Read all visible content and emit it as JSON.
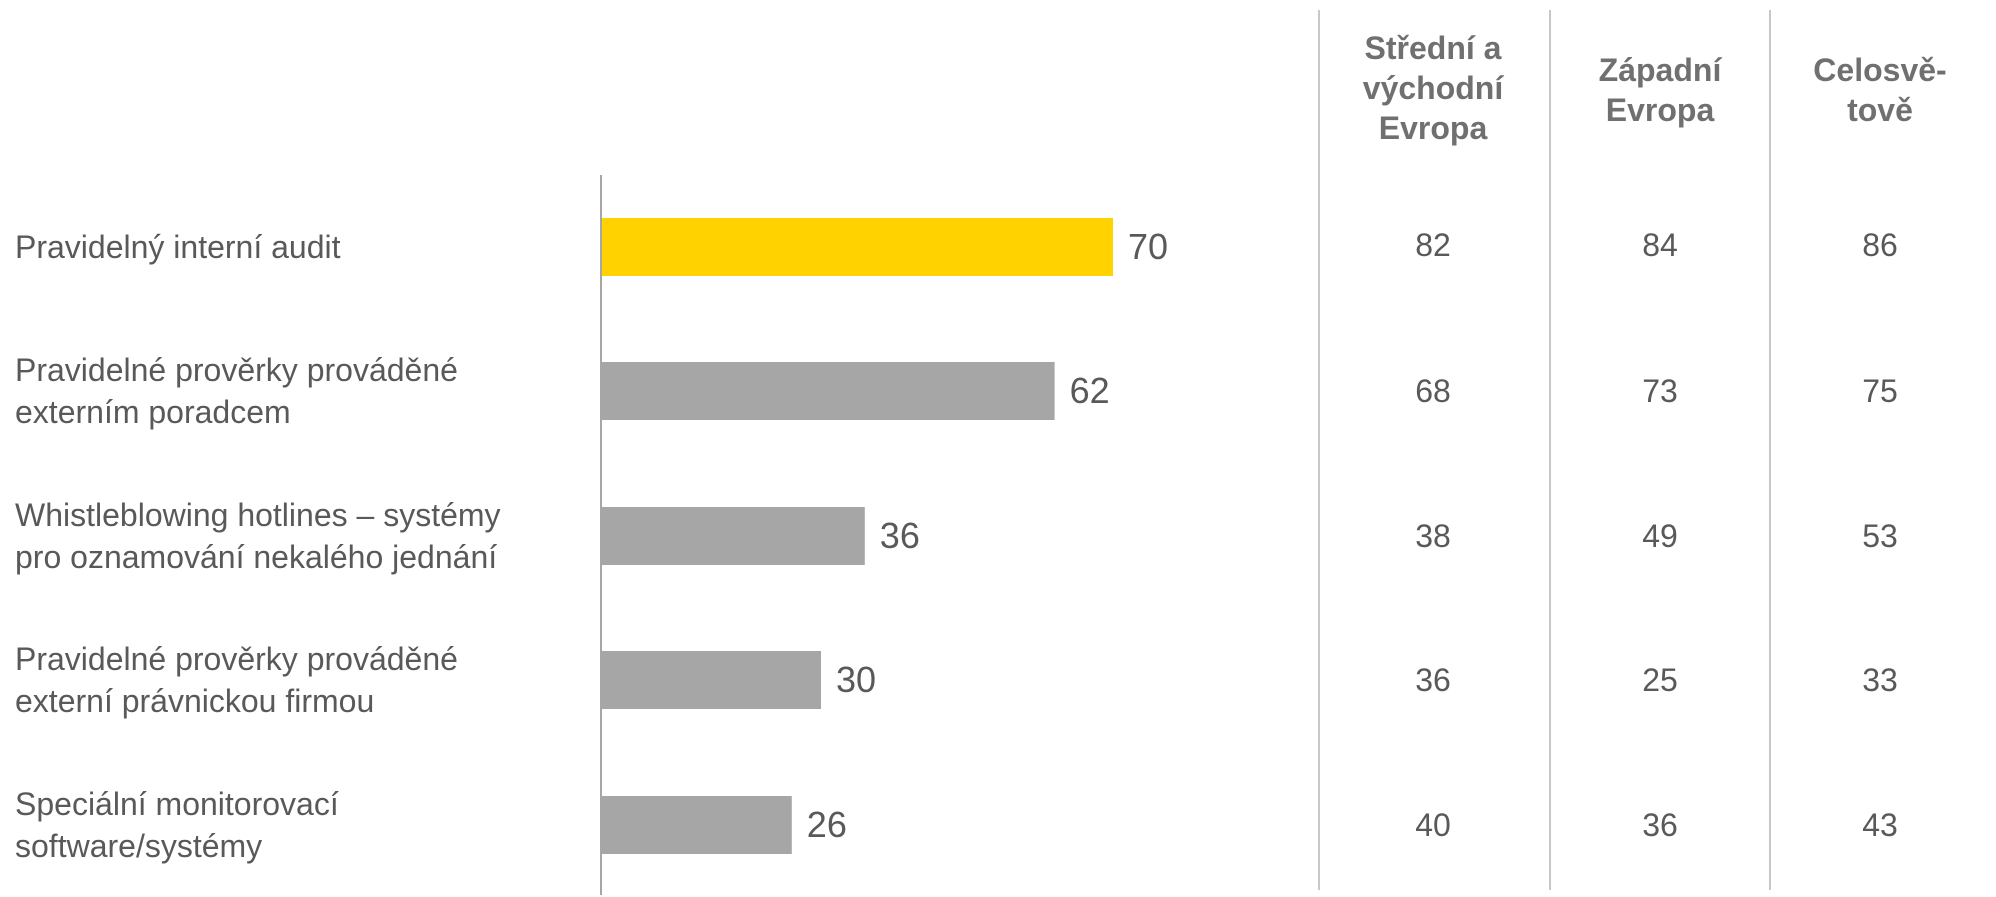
{
  "chart_data": {
    "type": "bar",
    "orientation": "horizontal",
    "categories": [
      "Pravidelný interní audit",
      "Pravidelné prověrky prováděné\nexterním poradcem",
      "Whistleblowing hotlines – systémy\npro oznamování nekalého jednání",
      "Pravidelné prověrky prováděné\nexterní právnickou firmou",
      "Speciální monitorovací\nsoftware/systémy"
    ],
    "values": [
      70,
      62,
      36,
      30,
      26
    ],
    "highlight_index": 0,
    "colors": {
      "highlight": "#FFD200",
      "bar": "#A6A6A6",
      "axis": "#A6A6A6",
      "divider": "#C8C8C8"
    },
    "table": {
      "columns": [
        {
          "header": "Střední a\nvýchodní\nEvropa",
          "values": [
            "82",
            "68",
            "38",
            "36",
            "40"
          ]
        },
        {
          "header": "Západní\nEvropa",
          "values": [
            "84",
            "73",
            "49",
            "25",
            "36"
          ]
        },
        {
          "header": "Celosvě-\ntově",
          "values": [
            "86",
            "75",
            "53",
            "33",
            "43"
          ]
        }
      ]
    },
    "grid": false,
    "legend": "none"
  }
}
